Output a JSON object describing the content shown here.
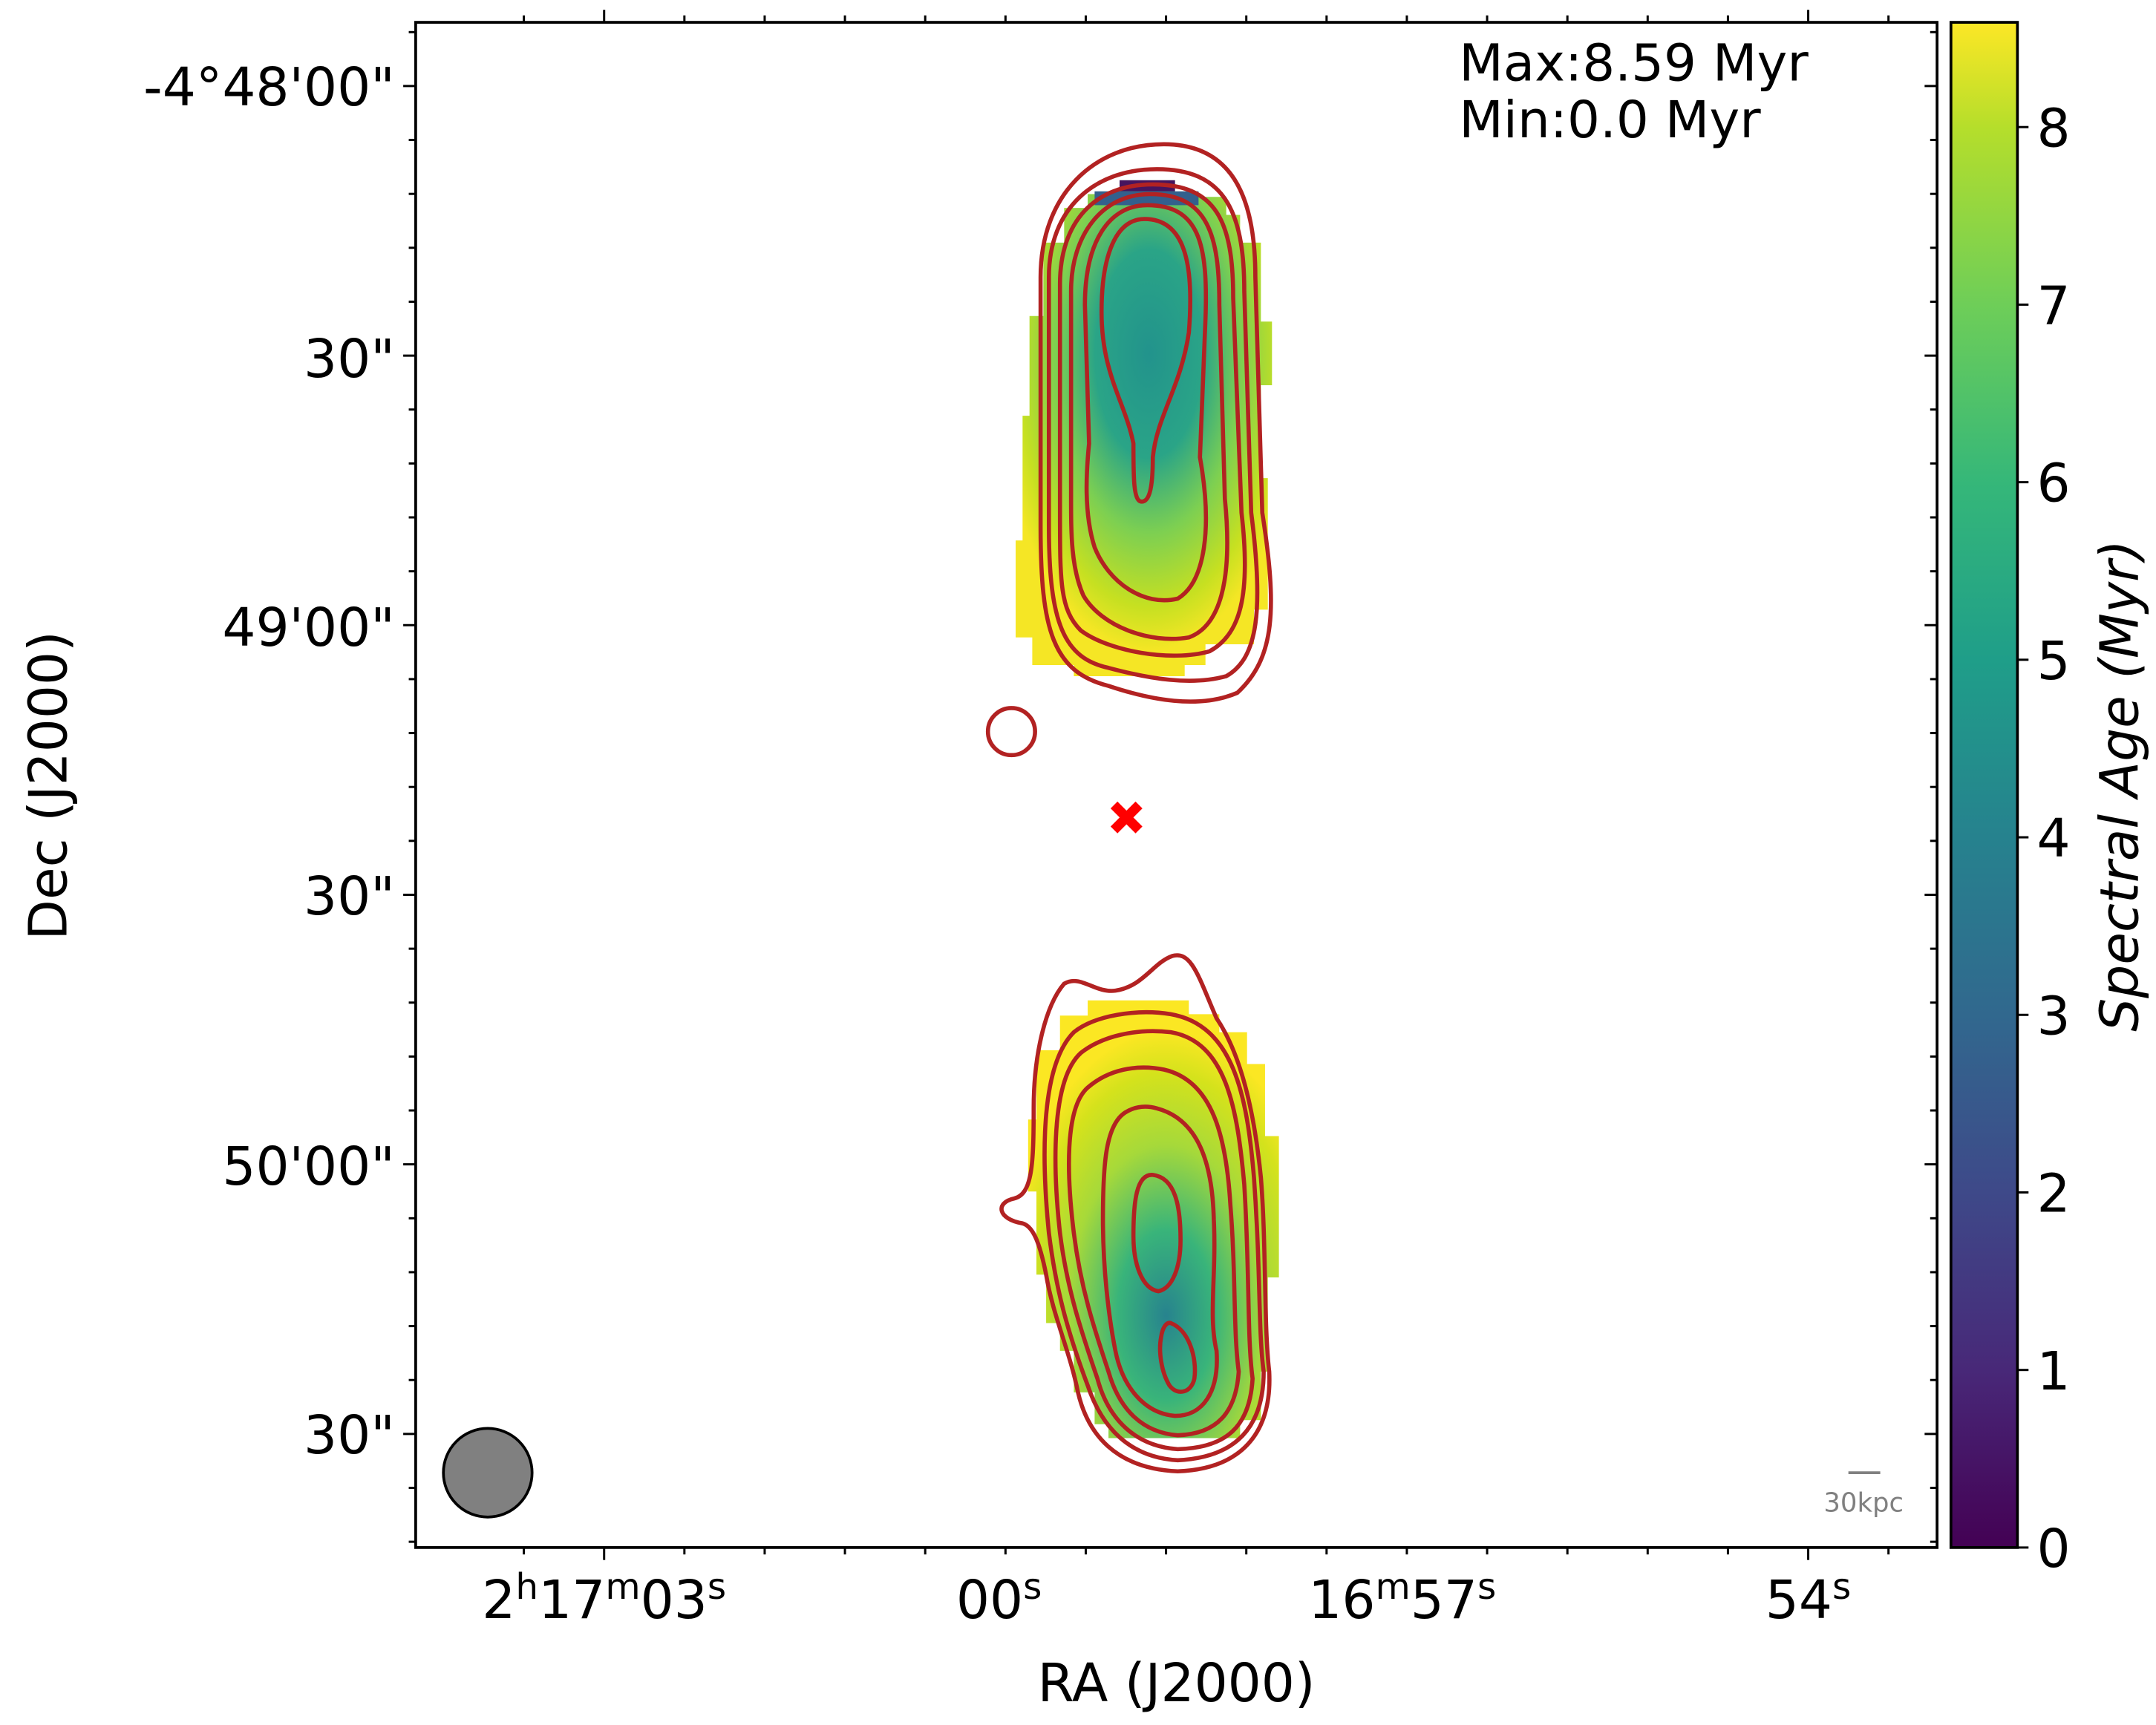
{
  "chart_data": {
    "type": "heatmap",
    "title": "",
    "xlabel": "RA (J2000)",
    "ylabel": "Dec (J2000)",
    "x_ticks": [
      {
        "main": "2",
        "u1": "h",
        "v2": "17",
        "u2": "m",
        "v3": "03",
        "u3": "s"
      },
      {
        "main": "00",
        "u1": "s"
      },
      {
        "main": "16",
        "u1": "m",
        "v2": "57",
        "u2": "s"
      },
      {
        "main": "54",
        "u1": "s"
      }
    ],
    "y_ticks": [
      "-4°48'00\"",
      "30\"",
      "49'00\"",
      "30\"",
      "50'00\"",
      "30\""
    ],
    "colorbar": {
      "label": "Spectral Age (Myr)",
      "range": [
        0,
        8.59
      ],
      "ticks": [
        "0",
        "1",
        "2",
        "3",
        "4",
        "5",
        "6",
        "7",
        "8"
      ],
      "colormap": "viridis"
    },
    "annotations": {
      "max_label": "Max:8.59 Myr",
      "min_label": "Min:0.0 Myr",
      "scale_bar": "30kpc"
    },
    "description_values": {
      "north_lobe_core_age_myr": 4.5,
      "north_lobe_edge_age_myr": 8.5,
      "south_lobe_core_age_myr": 4.0,
      "south_lobe_edge_age_myr": 8.5
    }
  },
  "colors": {
    "contour": "#b22222",
    "core_marker": "#ff0000",
    "beam": "#808080",
    "scale_bar": "#808080"
  }
}
